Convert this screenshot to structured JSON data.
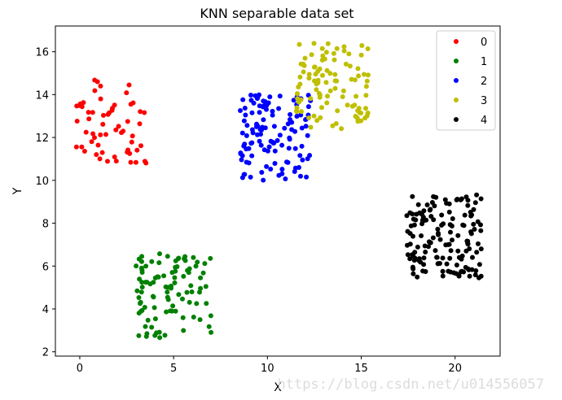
{
  "chart_data": {
    "type": "scatter",
    "title": "KNN separable data set",
    "xlabel": "X",
    "ylabel": "Y",
    "xlim": [
      -1.3,
      22.4
    ],
    "ylim": [
      1.8,
      17.2
    ],
    "xticks": [
      0,
      5,
      10,
      15,
      20
    ],
    "yticks": [
      2,
      4,
      6,
      8,
      10,
      12,
      14,
      16
    ],
    "grid": false,
    "legend_position": "top-right",
    "series": [
      {
        "name": "0",
        "color": "#ff0000",
        "cluster": {
          "xmin": -0.3,
          "xmax": 3.6,
          "ymin": 10.7,
          "ymax": 14.7,
          "n": 60,
          "seed": 11
        }
      },
      {
        "name": "1",
        "color": "#008000",
        "cluster": {
          "xmin": 3.0,
          "xmax": 7.0,
          "ymin": 2.6,
          "ymax": 6.6,
          "n": 100,
          "seed": 23
        }
      },
      {
        "name": "2",
        "color": "#0000ff",
        "cluster": {
          "xmin": 8.5,
          "xmax": 12.4,
          "ymin": 10.0,
          "ymax": 14.0,
          "n": 120,
          "seed": 37
        }
      },
      {
        "name": "3",
        "color": "#bfbf00",
        "cluster": {
          "xmin": 11.5,
          "xmax": 15.4,
          "ymin": 12.4,
          "ymax": 16.4,
          "n": 100,
          "seed": 41
        }
      },
      {
        "name": "4",
        "color": "#000000",
        "cluster": {
          "xmin": 17.4,
          "xmax": 21.4,
          "ymin": 5.4,
          "ymax": 9.4,
          "n": 150,
          "seed": 53
        }
      }
    ]
  },
  "watermark": "https://blog.csdn.net/u014556057"
}
